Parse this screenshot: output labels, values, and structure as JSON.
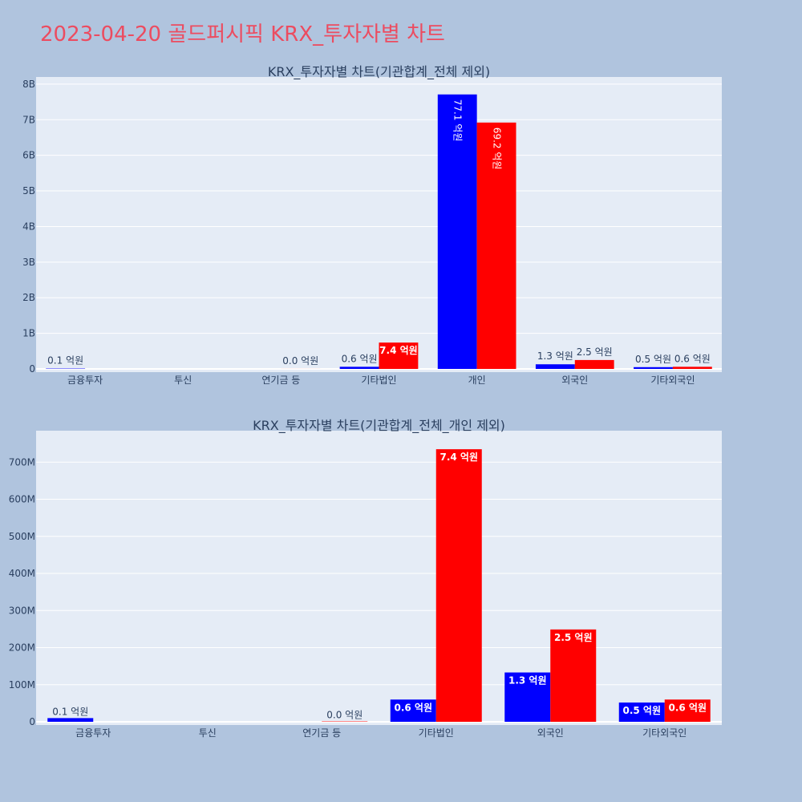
{
  "page": {
    "title": "2023-04-20 골드퍼시픽 KRX_투자자별 차트"
  },
  "colors": {
    "background": "#b0c4de",
    "plot_bg": "#e5ecf6",
    "series_a": "#0000ff",
    "series_b": "#ff0000",
    "title": "#ec4c60"
  },
  "chart_data": [
    {
      "type": "bar",
      "title": "KRX_투자자별 차트(기관합계_전체 제외)",
      "categories": [
        "금융투자",
        "투신",
        "연기금 등",
        "기타법인",
        "개인",
        "외국인",
        "기타외국인"
      ],
      "ylim": [
        0,
        8200000000
      ],
      "yticks": [
        0,
        1000000000,
        2000000000,
        3000000000,
        4000000000,
        5000000000,
        6000000000,
        7000000000,
        8000000000
      ],
      "ytick_labels": [
        "0",
        "1B",
        "2B",
        "3B",
        "4B",
        "5B",
        "6B",
        "7B",
        "8B"
      ],
      "grid": true,
      "series": [
        {
          "color": "#0000ff",
          "values": [
            10000000,
            0,
            0,
            60000000,
            7710000000,
            130000000,
            50000000
          ],
          "labels": [
            "0.1 억원",
            "",
            "",
            "0.6 억원",
            "77.1 억원",
            "1.3 억원",
            "0.5 억원"
          ]
        },
        {
          "color": "#ff0000",
          "values": [
            0,
            0,
            1000000,
            740000000,
            6920000000,
            250000000,
            60000000
          ],
          "labels": [
            "",
            "",
            "0.0 억원",
            "7.4 억원",
            "69.2 억원",
            "2.5 억원",
            "0.6 억원"
          ]
        }
      ]
    },
    {
      "type": "bar",
      "title": "KRX_투자자별 차트(기관합계_전체_개인 제외)",
      "categories": [
        "금융투자",
        "투신",
        "연기금 등",
        "기타법인",
        "외국인",
        "기타외국인"
      ],
      "ylim": [
        0,
        785000000
      ],
      "yticks": [
        0,
        100000000,
        200000000,
        300000000,
        400000000,
        500000000,
        600000000,
        700000000
      ],
      "ytick_labels": [
        "0",
        "100M",
        "200M",
        "300M",
        "400M",
        "500M",
        "600M",
        "700M"
      ],
      "grid": true,
      "series": [
        {
          "color": "#0000ff",
          "values": [
            10000000,
            0,
            0,
            60000000,
            133000000,
            52000000
          ],
          "labels": [
            "0.1 억원",
            "",
            "",
            "0.6 억원",
            "1.3 억원",
            "0.5 억원"
          ]
        },
        {
          "color": "#ff0000",
          "values": [
            0,
            0,
            1000000,
            735000000,
            249000000,
            60000000
          ],
          "labels": [
            "",
            "",
            "0.0 억원",
            "7.4 억원",
            "2.5 억원",
            "0.6 억원"
          ]
        }
      ]
    }
  ]
}
